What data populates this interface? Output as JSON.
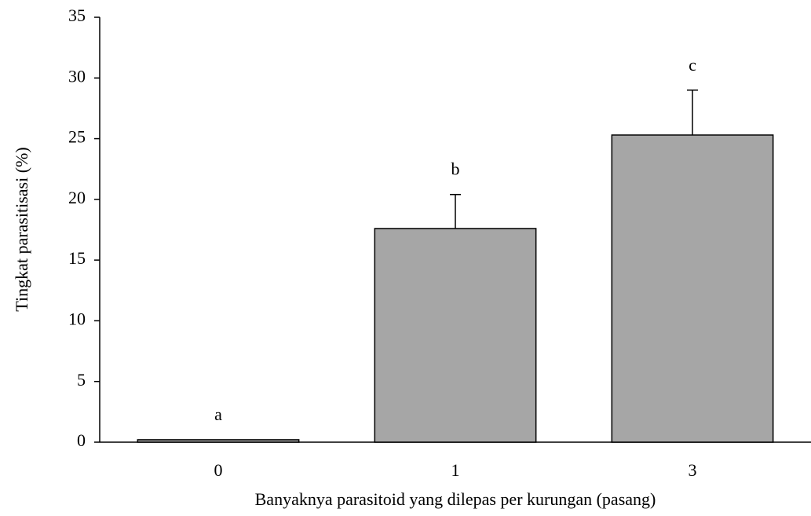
{
  "chart_data": {
    "type": "bar",
    "categories": [
      "0",
      "1",
      "3"
    ],
    "values": [
      0.2,
      17.6,
      25.3
    ],
    "errors": [
      0,
      2.8,
      3.7
    ],
    "annotations": [
      "a",
      "b",
      "c"
    ],
    "color": "#a6a6a6",
    "xlabel": "Banyaknya  parasitoid  yang  dilepas  per  kurungan  (pasang)",
    "ylabel": "Tingkat  parasitisasi  (%)",
    "ylim": [
      0,
      35
    ],
    "yticks": [
      0,
      5,
      10,
      15,
      20,
      25,
      30,
      35
    ],
    "grid": false
  }
}
